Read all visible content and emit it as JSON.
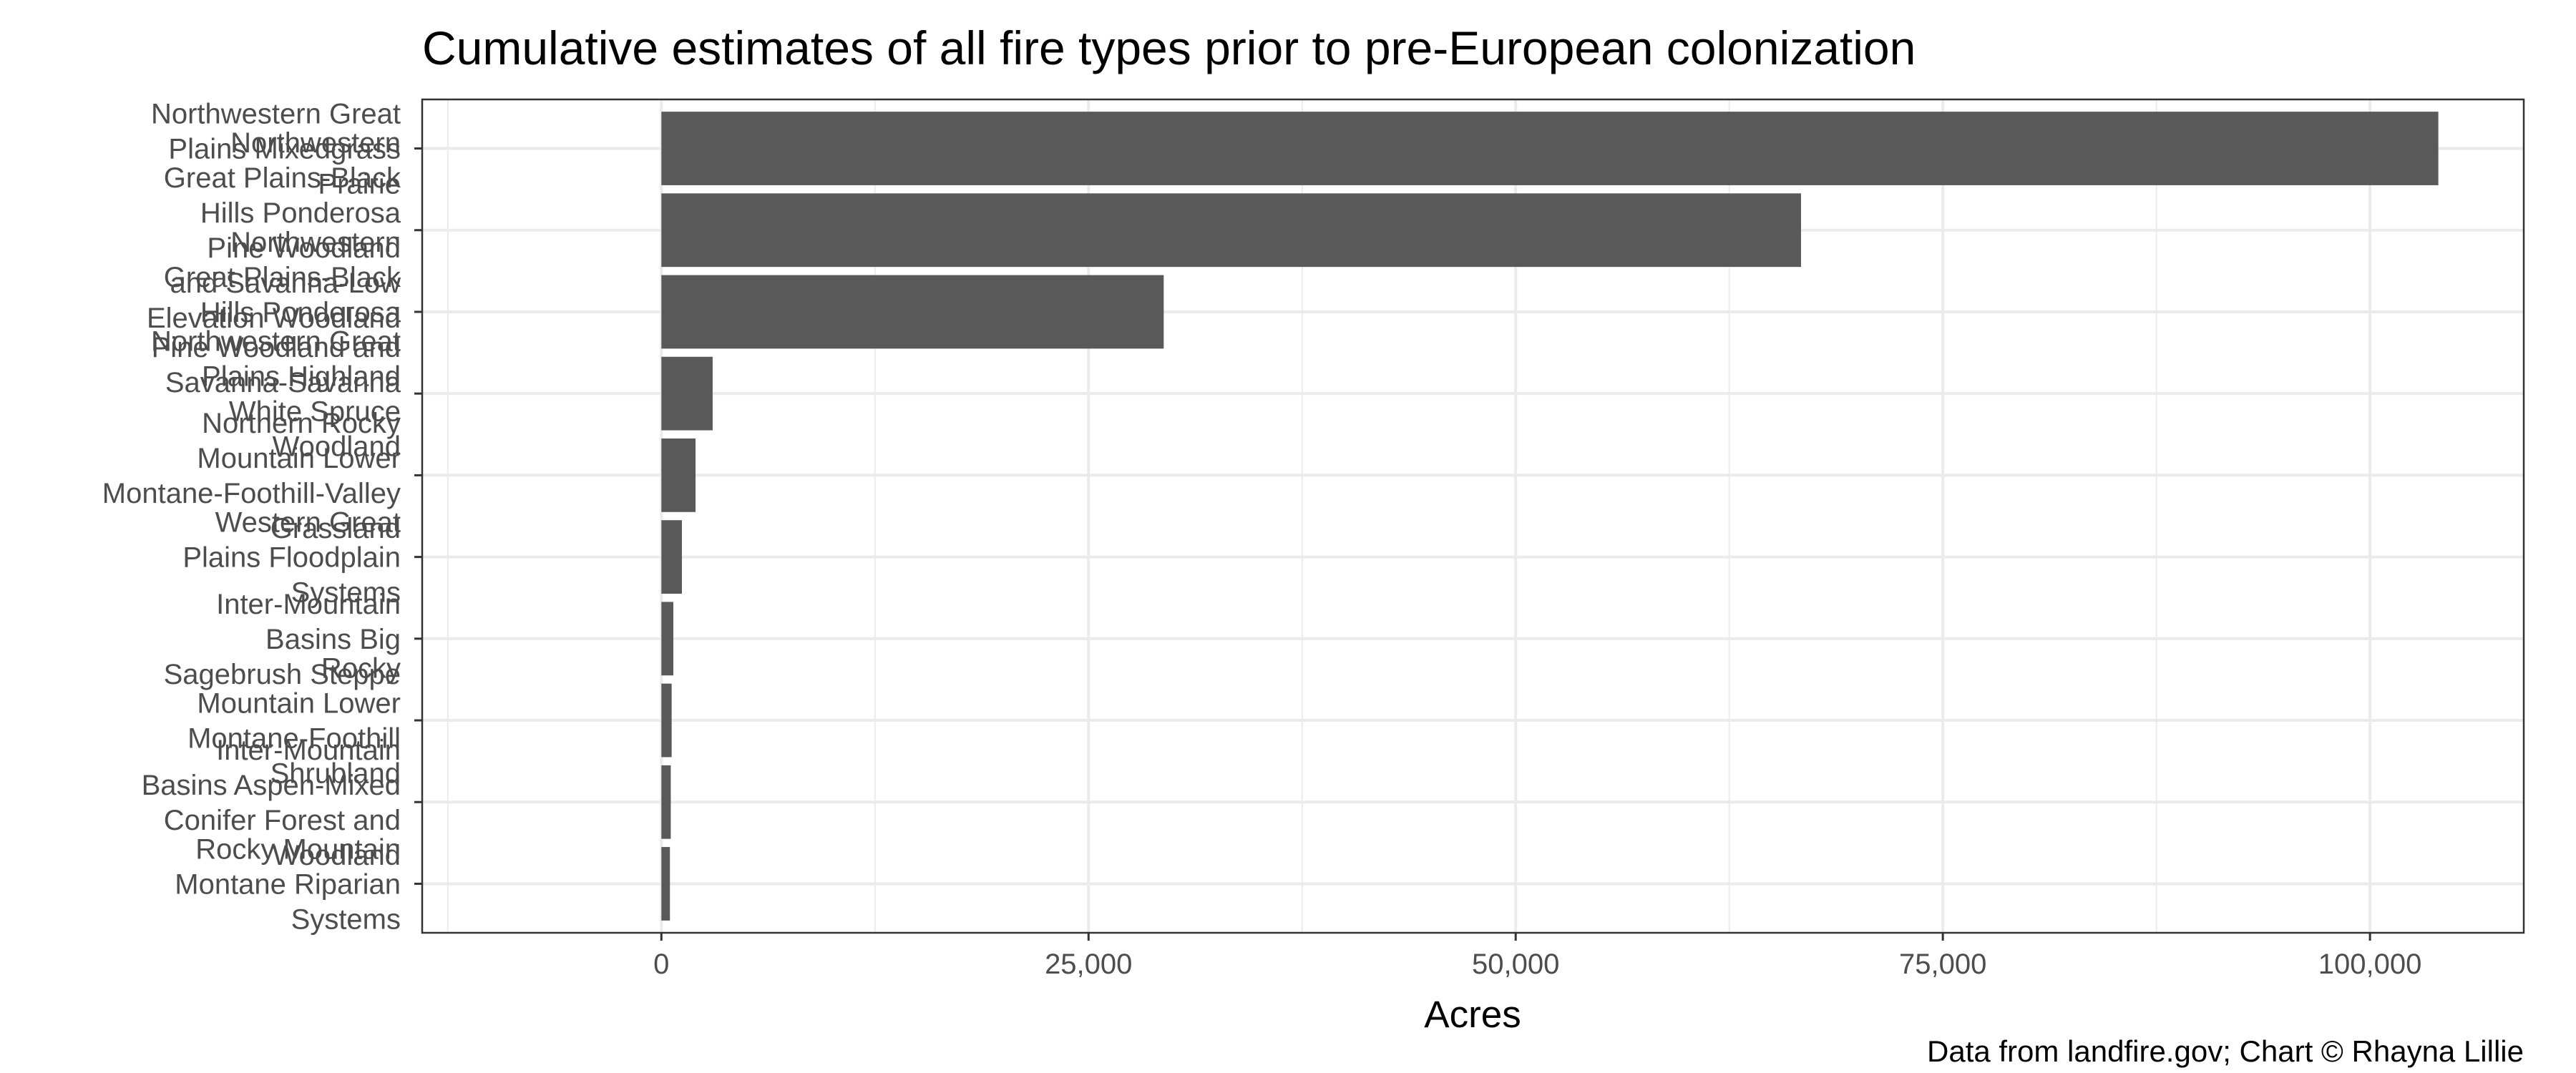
{
  "chart_data": {
    "type": "bar",
    "orientation": "horizontal",
    "title": "Cumulative estimates of all fire types prior to pre-European colonization",
    "xlabel": "Acres",
    "ylabel": "",
    "caption": "Data from landfire.gov; Chart © Rhayna Lillie",
    "xlim": [
      -14000,
      109000
    ],
    "x_ticks": [
      0,
      25000,
      50000,
      75000,
      100000
    ],
    "x_tick_labels": [
      "0",
      "25,000",
      "50,000",
      "75,000",
      "100,000"
    ],
    "bar_color": "#595959",
    "panel_border_color": "#333333",
    "grid_major_color": "#ebebeb",
    "grid": true,
    "legend": "none",
    "categories": [
      "Northwestern Great Plains Mixedgrass Prairie",
      "Northwestern Great Plains-Black Hills Ponderosa Pine Woodland and Savanna-Low Elevation Woodland",
      "Northwestern Great Plains-Black Hills Ponderosa Pine Woodland and Savanna-Savanna",
      "Northwestern Great Plains Highland White Spruce Woodland",
      "Northern Rocky Mountain Lower Montane-Foothill-Valley Grassland",
      "Western Great Plains Floodplain Systems",
      "Inter-Mountain Basins Big Sagebrush Steppe",
      "Rocky Mountain Lower Montane-Foothill Shrubland",
      "Inter-Mountain Basins Aspen-Mixed Conifer Forest and Woodland",
      "Rocky Mountain Montane Riparian Systems"
    ],
    "category_label_lines": [
      [
        "Northwestern Great",
        "Plains Mixedgrass",
        "Prairie"
      ],
      [
        "Northwestern",
        "Great Plains-Black",
        "Hills Ponderosa",
        "Pine Woodland",
        "and Savanna-Low",
        "Elevation Woodland"
      ],
      [
        "Northwestern",
        "Great Plains-Black",
        "Hills Ponderosa",
        "Pine Woodland and",
        "Savanna-Savanna"
      ],
      [
        "Northwestern Great",
        "Plains Highland",
        "White Spruce",
        "Woodland"
      ],
      [
        "Northern Rocky",
        "Mountain Lower",
        "Montane-Foothill-Valley",
        "Grassland"
      ],
      [
        "Western Great",
        "Plains Floodplain",
        "Systems"
      ],
      [
        "Inter-Mountain",
        "Basins Big",
        "Sagebrush Steppe"
      ],
      [
        "Rocky",
        "Mountain Lower",
        "Montane-Foothill",
        "Shrubland"
      ],
      [
        "Inter-Mountain",
        "Basins Aspen-Mixed",
        "Conifer Forest and",
        "Woodland"
      ],
      [
        "Rocky Mountain",
        "Montane Riparian",
        "Systems"
      ]
    ],
    "values": [
      104000,
      66700,
      29400,
      3000,
      2000,
      1200,
      700,
      600,
      550,
      500
    ]
  }
}
